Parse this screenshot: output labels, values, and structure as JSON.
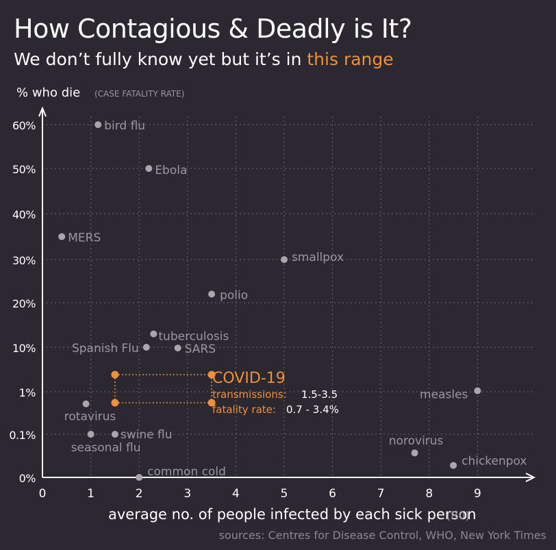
{
  "title": "How Contagious & Deadly is It?",
  "subtitle": {
    "prefix": "We don’t fully know yet but it’s in ",
    "highlight": "this range"
  },
  "source": "sources: Centres for Disease Control, WHO, New York Times",
  "colors": {
    "background": "#2b2831",
    "text": "#ffffff",
    "muted": "#9a979f",
    "point": "#a9a6ad",
    "accent": "#f0903a",
    "grid": "#6a6670"
  },
  "chart_data": {
    "type": "scatter",
    "ylabel": "% who die",
    "ylabel_note": "(CASE FATALITY RATE)",
    "xlabel": "average no. of people infected by each sick person",
    "xlabel_note": "(R0)",
    "xlim": [
      0,
      10
    ],
    "x_ticks": [
      "0",
      "1",
      "2",
      "3",
      "4",
      "5",
      "6",
      "7",
      "8",
      "9"
    ],
    "y_ticks": [
      "0%",
      "0.1%",
      "1%",
      "10%",
      "20%",
      "30%",
      "40%",
      "50%",
      "60%"
    ],
    "grid": true,
    "points": [
      {
        "name": "bird flu",
        "x": 1.15,
        "y": 60
      },
      {
        "name": "Ebola",
        "x": 2.2,
        "y": 50
      },
      {
        "name": "MERS",
        "x": 0.4,
        "y": 35
      },
      {
        "name": "smallpox",
        "x": 5.0,
        "y": 30
      },
      {
        "name": "polio",
        "x": 3.5,
        "y": 22
      },
      {
        "name": "tuberculosis",
        "x": 2.3,
        "y": 13
      },
      {
        "name": "Spanish Flu",
        "x": 2.15,
        "y": 10
      },
      {
        "name": "SARS",
        "x": 2.8,
        "y": 9.6
      },
      {
        "name": "measles",
        "x": 9.0,
        "y": 1
      },
      {
        "name": "rotavirus",
        "x": 0.9,
        "y": 0.5
      },
      {
        "name": "seasonal flu",
        "x": 1.0,
        "y": 0.1
      },
      {
        "name": "swine flu",
        "x": 1.5,
        "y": 0.1
      },
      {
        "name": "norovirus",
        "x": 7.7,
        "y": 0.03
      },
      {
        "name": "chickenpox",
        "x": 8.5,
        "y": 0.01
      },
      {
        "name": "common cold",
        "x": 2.0,
        "y": 0
      }
    ],
    "highlight": {
      "name": "COVID-19",
      "transmissions_label": "transmissions:",
      "transmissions_value": "1.5-3.5",
      "fatality_label": "fatality rate:",
      "fatality_value": "0.7 - 3.4%",
      "x_range": [
        1.5,
        3.5
      ],
      "y_range": [
        0.7,
        3.4
      ]
    }
  }
}
